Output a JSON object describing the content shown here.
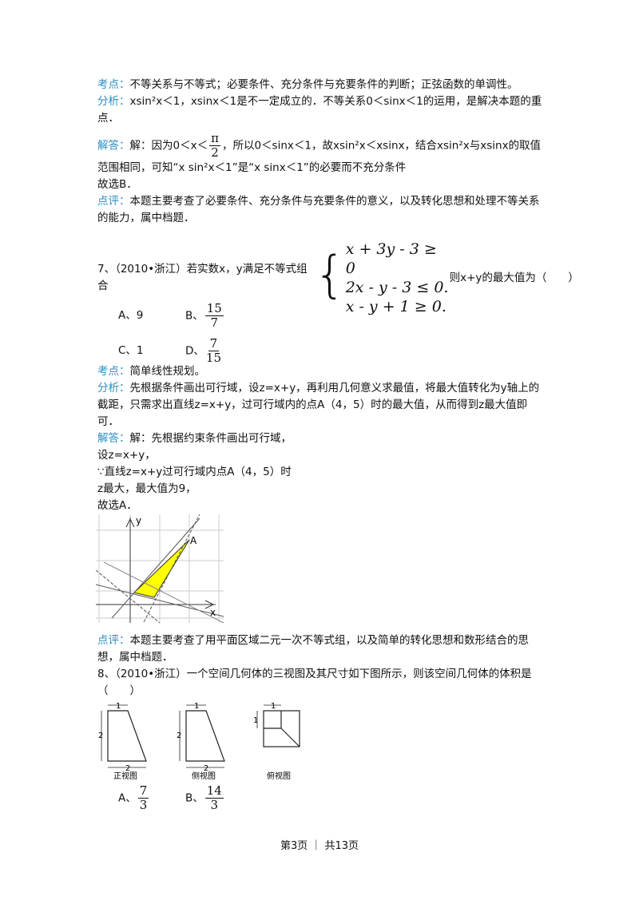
{
  "q6_review": {
    "kaodian_label": "考点：",
    "kaodian": "不等关系与不等式；必要条件、充分条件与充要条件的判断；正弦函数的单调性。",
    "fenxi_label": "分析：",
    "fenxi": "xsin²x＜1，xsinx＜1是不一定成立的．不等关系0＜sinx＜1的运用，是解决本题的重点．",
    "jieda_label": "解答：",
    "jieda_1": "解：因为0＜x＜",
    "jieda_frac": {
      "num": "π",
      "den": "2"
    },
    "jieda_2": "，所以0＜sinx＜1，故xsin²x＜xsinx，结合xsin²x与xsinx的取值范围相同，可知“x sin²x＜1”是“x sinx＜1”的必要而不充分条件",
    "answer": "故选B．",
    "dianping_label": "点评：",
    "dianping": "本题主要考查了必要条件、充分条件与充要条件的意义，以及转化思想和处理不等关系的能力，属中档题．"
  },
  "q7": {
    "stem_1": "7、（2010•浙江）若实数x，y满足不等式组合",
    "system": [
      "x + 3y - 3 ≥ 0",
      "2x - y - 3 ≤ 0.",
      "x - y + 1 ≥ 0."
    ],
    "stem_2": "则x+y的最大值为（　　）",
    "options": [
      {
        "key": "A、",
        "text": "9"
      },
      {
        "key": "B、",
        "num": "15",
        "den": "7"
      },
      {
        "key": "C、",
        "text": "1"
      },
      {
        "key": "D、",
        "num": "7",
        "den": "15"
      }
    ],
    "kaodian_label": "考点：",
    "kaodian": "简单线性规划。",
    "fenxi_label": "分析：",
    "fenxi": "先根据条件画出可行域，设z=x+y，再利用几何意义求最值，将最大值转化为y轴上的截距，只需求出直线z=x+y，过可行域内的点A（4，5）时的最大值，从而得到z最大值即可．",
    "jieda_label": "解答：",
    "jieda_lines": [
      "解：先根据约束条件画出可行域，",
      "设z=x+y，",
      "∵直线z=x+y过可行域内点A（4，5）时",
      "z最大，最大值为9，",
      "故选A．"
    ],
    "figure": {
      "y_label": "y",
      "x_label": "x",
      "point_label": "A"
    },
    "dianping_label": "点评：",
    "dianping": "本题主要考查了用平面区域二元一次不等式组，以及简单的转化思想和数形结合的思想，属中档题．"
  },
  "q8": {
    "stem": "8、（2010•浙江）一个空间几何体的三视图及其尺寸如下图所示，则该空间几何体的体积是（　　）",
    "figure": {
      "dim_1": "1",
      "dim_2": "2",
      "front": "正视图",
      "side": "侧视图",
      "top": "俯视图"
    },
    "options": [
      {
        "key": "A、",
        "num": "7",
        "den": "3"
      },
      {
        "key": "B、",
        "num": "14",
        "den": "3"
      }
    ]
  },
  "footer": "第3页 ｜ 共13页"
}
